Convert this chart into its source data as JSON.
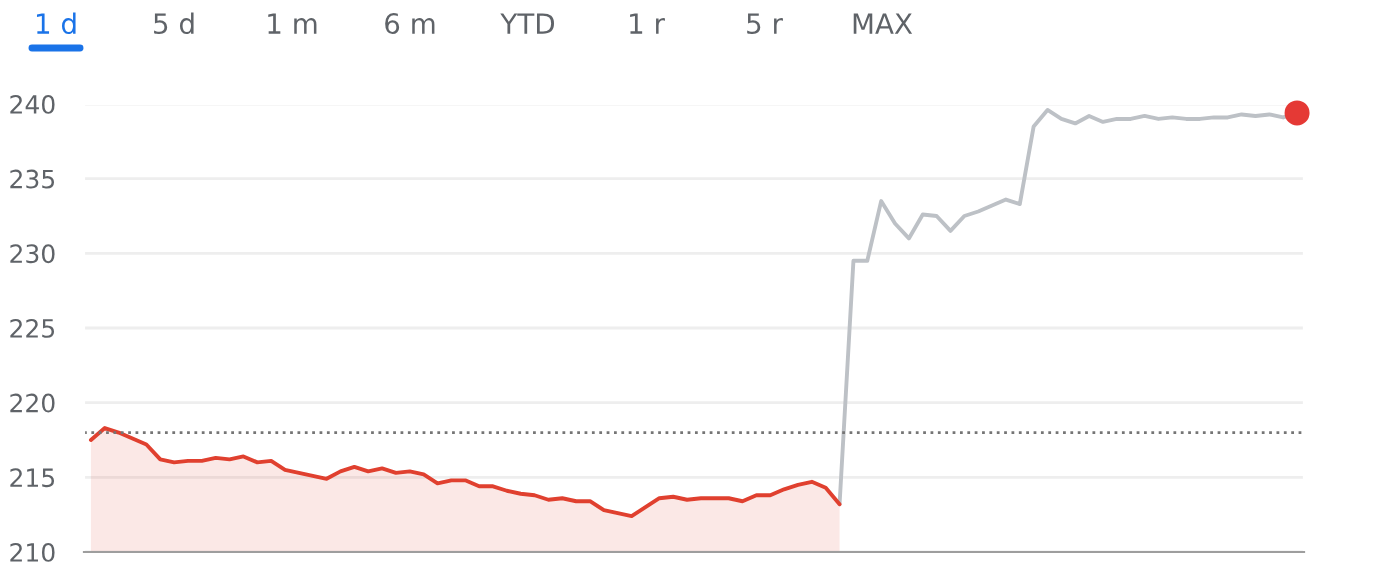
{
  "chart_data": {
    "type": "line",
    "annotations": [
      "1 d",
      "5 d",
      "1 m",
      "6 m",
      "YTD",
      "1 r",
      "5 r",
      "MAX"
    ],
    "categories": [
      null,
      null,
      null,
      null,
      null,
      null,
      null,
      null,
      null,
      null,
      null,
      null,
      null,
      null,
      null,
      null,
      null,
      null,
      null,
      null,
      null,
      null,
      null,
      null,
      null,
      null,
      null,
      null,
      null,
      null,
      null,
      null,
      null,
      null,
      null,
      null,
      null,
      null,
      null,
      null,
      null,
      null,
      null,
      null,
      null,
      null,
      null,
      null,
      null,
      null,
      null,
      null,
      null,
      null,
      null,
      null,
      null,
      null,
      null,
      null,
      null,
      null,
      null,
      null,
      null,
      null,
      null,
      null,
      null,
      null,
      null,
      null,
      null,
      null,
      null,
      null,
      null,
      null,
      null,
      null,
      null,
      null,
      null,
      null,
      null,
      null,
      null,
      null
    ],
    "series": [
      {
        "type": "line",
        "color": "#bdc1c6",
        "values": [
          null,
          null,
          null,
          null,
          null,
          null,
          null,
          null,
          null,
          null,
          null,
          null,
          null,
          null,
          null,
          null,
          null,
          null,
          null,
          null,
          null,
          null,
          null,
          null,
          null,
          null,
          null,
          null,
          null,
          null,
          null,
          null,
          null,
          null,
          null,
          null,
          null,
          null,
          null,
          null,
          null,
          null,
          null,
          null,
          null,
          null,
          null,
          null,
          null,
          null,
          null,
          null,
          null,
          null,
          213.2,
          229.5,
          229.5,
          233.5,
          232,
          231,
          232.6,
          232.5,
          231.5,
          232.5,
          232.8,
          233.2,
          233.6,
          233.3,
          238.5,
          239.6,
          239,
          238.7,
          239.2,
          238.8,
          239,
          239,
          239.2,
          239,
          239.1,
          239,
          239,
          239.1,
          239.1,
          239.3,
          239.2,
          239.3,
          239.1,
          239.4
        ]
      },
      {
        "type": "area",
        "color": "#e0402f",
        "values": [
          217.5,
          218.3,
          218,
          217.6,
          217.2,
          216.2,
          216,
          216.1,
          216.1,
          216.3,
          216.2,
          216.4,
          216,
          216.1,
          215.5,
          215.3,
          215.1,
          214.9,
          215.4,
          215.7,
          215.4,
          215.6,
          215.3,
          215.4,
          215.2,
          214.6,
          214.8,
          214.8,
          214.4,
          214.4,
          214.1,
          213.9,
          213.8,
          213.5,
          213.6,
          213.4,
          213.4,
          212.8,
          212.6,
          212.4,
          213.0,
          213.6,
          213.7,
          213.5,
          213.6,
          213.6,
          213.6,
          213.4,
          213.8,
          213.8,
          214.2,
          214.5,
          214.7,
          214.3,
          213.2,
          null,
          null,
          null,
          null,
          null,
          null,
          null,
          null,
          null,
          null,
          null,
          null,
          null,
          null,
          null,
          null,
          null,
          null,
          null,
          null,
          null,
          null,
          null,
          null,
          null,
          null,
          null,
          null,
          null,
          null,
          null,
          null,
          null
        ]
      },
      {
        "type": "scatter",
        "color": "#e53935",
        "marker": "circle",
        "values": [
          null,
          null,
          null,
          null,
          null,
          null,
          null,
          null,
          null,
          null,
          null,
          null,
          null,
          null,
          null,
          null,
          null,
          null,
          null,
          null,
          null,
          null,
          null,
          null,
          null,
          null,
          null,
          null,
          null,
          null,
          null,
          null,
          null,
          null,
          null,
          null,
          null,
          null,
          null,
          null,
          null,
          null,
          null,
          null,
          null,
          null,
          null,
          null,
          null,
          null,
          null,
          null,
          null,
          null,
          null,
          null,
          null,
          null,
          null,
          null,
          null,
          null,
          null,
          null,
          null,
          null,
          null,
          null,
          null,
          null,
          null,
          null,
          null,
          null,
          null,
          null,
          null,
          null,
          null,
          null,
          null,
          null,
          null,
          null,
          null,
          null,
          null,
          239.4
        ]
      }
    ],
    "ylim": [
      210,
      240
    ],
    "yticks": [
      210,
      215,
      220,
      225,
      230,
      235,
      240
    ],
    "ref_lines": [
      {
        "axis": "y",
        "value": 218,
        "color": "#757575",
        "line_style": "dotted"
      }
    ],
    "grid": "y",
    "legend": false
  }
}
